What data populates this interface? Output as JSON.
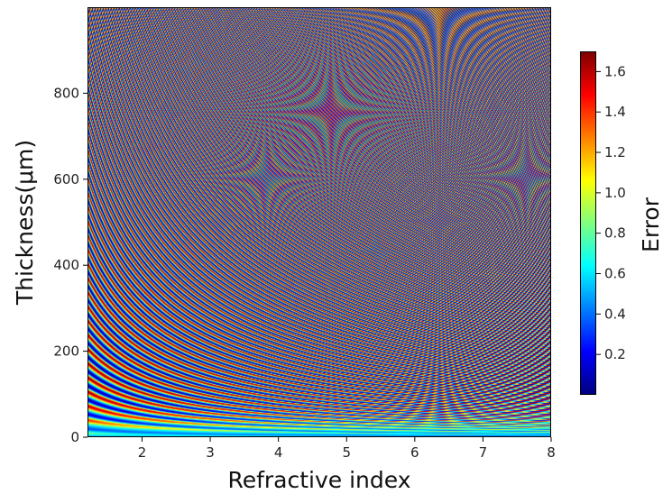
{
  "chart_data": {
    "type": "heatmap",
    "title": "",
    "xlabel": "Refractive index",
    "ylabel": "Thickness(μm)",
    "xlim": [
      1.2,
      8
    ],
    "ylim": [
      0,
      1000
    ],
    "xticks": [
      2,
      3,
      4,
      5,
      6,
      7,
      8
    ],
    "xtick_labels": [
      "2",
      "3",
      "4",
      "5",
      "6",
      "7",
      "8"
    ],
    "yticks": [
      0,
      200,
      400,
      600,
      800
    ],
    "ytick_labels": [
      "0",
      "200",
      "400",
      "600",
      "800"
    ],
    "z_label": "Error",
    "colormap": "jet",
    "zlim": [
      0,
      1.7
    ],
    "colorbar_ticks": [
      0.2,
      0.4,
      0.6,
      0.8,
      1.0,
      1.2,
      1.4,
      1.6
    ],
    "colorbar_tick_labels": [
      "0.2",
      "0.4",
      "0.6",
      "0.8",
      "1.0",
      "1.2",
      "1.4",
      "1.6"
    ],
    "pattern": "Oscillating fringes of Error along hyperbolic contours of constant optical thickness (refractive index × thickness); fringe period in thickness decreases as refractive index increases. Low error (blue) near zero thickness.",
    "grid": false,
    "colorbar_position": "right"
  }
}
